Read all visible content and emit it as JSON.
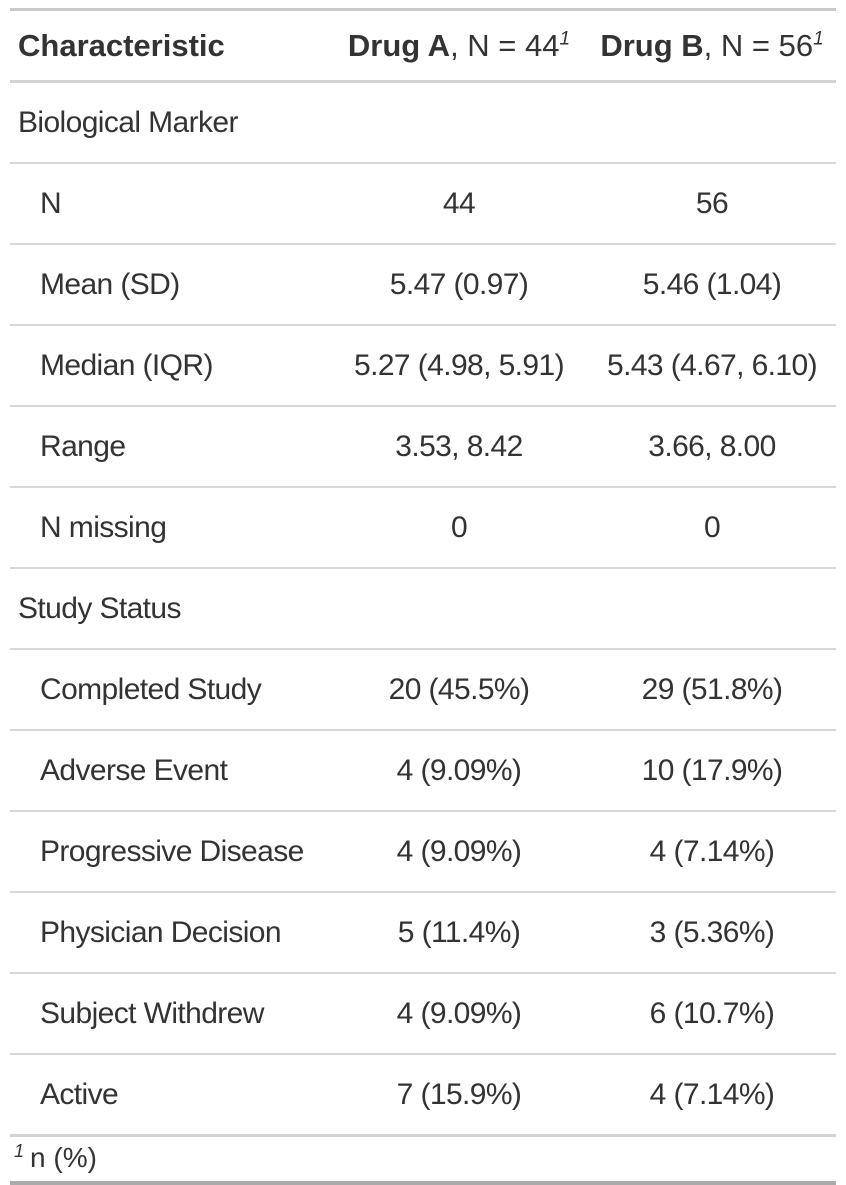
{
  "colors": {
    "text": "#333333",
    "row_separator": "#d7d7d7",
    "header_rule": "#d3d3d3",
    "table_top_rule": "#c9c9c9",
    "table_bottom_rule": "#ababab",
    "background": "#ffffff"
  },
  "table": {
    "header": {
      "characteristic": "Characteristic",
      "drug_a": {
        "name": "Drug A",
        "rest": ", N = 44",
        "mark": "1"
      },
      "drug_b": {
        "name": "Drug B",
        "rest": ", N = 56",
        "mark": "1"
      }
    },
    "rows": [
      {
        "type": "group",
        "label": "Biological Marker"
      },
      {
        "type": "data",
        "label": "N",
        "a": "44",
        "b": "56"
      },
      {
        "type": "data",
        "label": "Mean (SD)",
        "a": "5.47 (0.97)",
        "b": "5.46 (1.04)"
      },
      {
        "type": "data",
        "label": "Median (IQR)",
        "a": "5.27 (4.98, 5.91)",
        "b": "5.43 (4.67, 6.10)"
      },
      {
        "type": "data",
        "label": "Range",
        "a": "3.53, 8.42",
        "b": "3.66, 8.00"
      },
      {
        "type": "data",
        "label": "N missing",
        "a": "0",
        "b": "0"
      },
      {
        "type": "group",
        "label": "Study Status"
      },
      {
        "type": "data",
        "label": "Completed Study",
        "a": "20 (45.5%)",
        "b": "29 (51.8%)"
      },
      {
        "type": "data",
        "label": "Adverse Event",
        "a": "4 (9.09%)",
        "b": "10 (17.9%)"
      },
      {
        "type": "data",
        "label": "Progressive Disease",
        "a": "4 (9.09%)",
        "b": "4 (7.14%)"
      },
      {
        "type": "data",
        "label": "Physician Decision",
        "a": "5 (11.4%)",
        "b": "3 (5.36%)"
      },
      {
        "type": "data",
        "label": "Subject Withdrew",
        "a": "4 (9.09%)",
        "b": "6 (10.7%)"
      },
      {
        "type": "data",
        "label": "Active",
        "a": "7 (15.9%)",
        "b": "4 (7.14%)"
      }
    ],
    "footnote": {
      "mark": "1",
      "text": "n (%)"
    }
  },
  "chart_data": {
    "type": "table",
    "title": "",
    "columns": [
      "Characteristic",
      "Drug A, N = 44 [1]",
      "Drug B, N = 56 [1]"
    ],
    "groups": [
      {
        "name": "Biological Marker",
        "rows": [
          [
            "N",
            "44",
            "56"
          ],
          [
            "Mean (SD)",
            "5.47 (0.97)",
            "5.46 (1.04)"
          ],
          [
            "Median (IQR)",
            "5.27 (4.98, 5.91)",
            "5.43 (4.67, 6.10)"
          ],
          [
            "Range",
            "3.53, 8.42",
            "3.66, 8.00"
          ],
          [
            "N missing",
            "0",
            "0"
          ]
        ]
      },
      {
        "name": "Study Status",
        "rows": [
          [
            "Completed Study",
            "20 (45.5%)",
            "29 (51.8%)"
          ],
          [
            "Adverse Event",
            "4 (9.09%)",
            "10 (17.9%)"
          ],
          [
            "Progressive Disease",
            "4 (9.09%)",
            "4 (7.14%)"
          ],
          [
            "Physician Decision",
            "5 (11.4%)",
            "3 (5.36%)"
          ],
          [
            "Subject Withdrew",
            "4 (9.09%)",
            "6 (10.7%)"
          ],
          [
            "Active",
            "7 (15.9%)",
            "4 (7.14%)"
          ]
        ]
      }
    ],
    "footnotes": [
      "1 n (%)"
    ]
  }
}
